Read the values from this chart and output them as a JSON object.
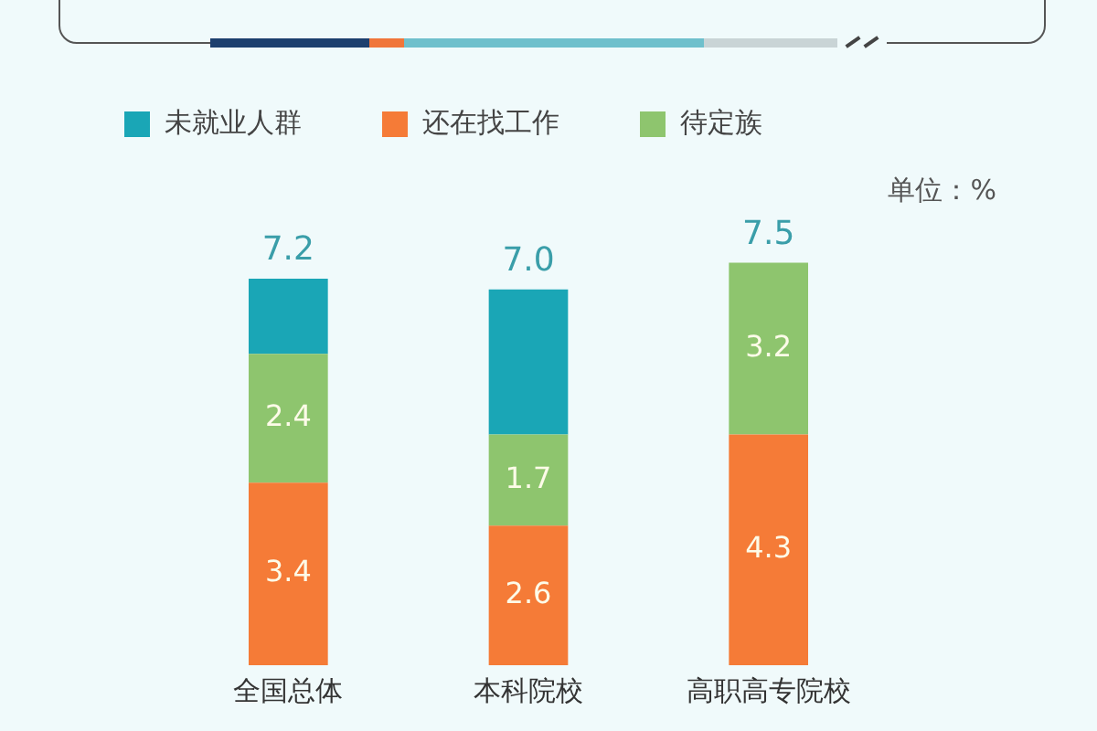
{
  "chart_data": {
    "type": "bar",
    "categories": [
      "全国总体",
      "本科院校",
      "高职高专院校"
    ],
    "series": [
      {
        "name": "还在找工作",
        "color": "#f57b37",
        "values": [
          3.4,
          2.6,
          4.3
        ],
        "value_labels": [
          "3.4",
          "2.6",
          "4.3"
        ]
      },
      {
        "name": "待定族",
        "color": "#8ec56e",
        "values": [
          2.4,
          1.7,
          3.2
        ],
        "value_labels": [
          "2.4",
          "1.7",
          "3.2"
        ]
      },
      {
        "name": "未就业人群",
        "color": "#1aa6b6",
        "values": [
          1.4,
          2.7,
          0
        ]
      }
    ],
    "stacked": true,
    "totals": [
      "7.2",
      "7.0",
      "7.5"
    ],
    "legend": "top",
    "annotations": [
      "单位：%"
    ]
  }
}
